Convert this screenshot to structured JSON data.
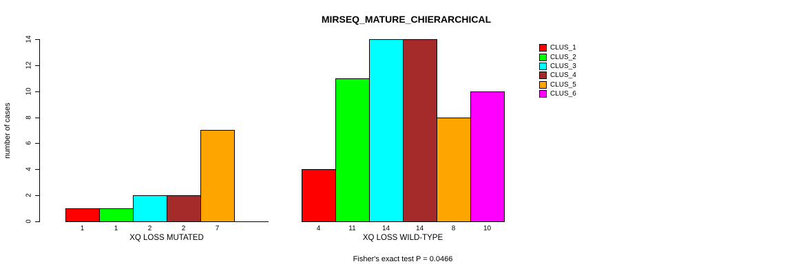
{
  "chart_data": {
    "type": "bar",
    "title": "MIRSEQ_MATURE_CHIERARCHICAL",
    "ylabel": "number of cases",
    "ylim": [
      0,
      14
    ],
    "yticks": [
      0,
      2,
      4,
      6,
      8,
      10,
      12,
      14
    ],
    "grid": false,
    "legend_position": "right",
    "series": [
      {
        "name": "CLUS_1",
        "color": "#FF0000"
      },
      {
        "name": "CLUS_2",
        "color": "#00FF00"
      },
      {
        "name": "CLUS_3",
        "color": "#00FFFF"
      },
      {
        "name": "CLUS_4",
        "color": "#A52A2A"
      },
      {
        "name": "CLUS_5",
        "color": "#FFA500"
      },
      {
        "name": "CLUS_6",
        "color": "#FF00FF"
      }
    ],
    "groups": [
      {
        "xlabel": "XQ LOSS MUTATED",
        "values": [
          1,
          1,
          2,
          2,
          7,
          0
        ],
        "bar_labels": [
          "1",
          "1",
          "2",
          "2",
          "7",
          ""
        ]
      },
      {
        "xlabel": "XQ LOSS WILD-TYPE",
        "values": [
          4,
          11,
          14,
          14,
          8,
          10
        ],
        "bar_labels": [
          "4",
          "11",
          "14",
          "14",
          "8",
          "10"
        ]
      }
    ],
    "annotation": "Fisher's exact test P = 0.0466",
    "axis_color": "#000000",
    "background": "#FFFFFF"
  }
}
